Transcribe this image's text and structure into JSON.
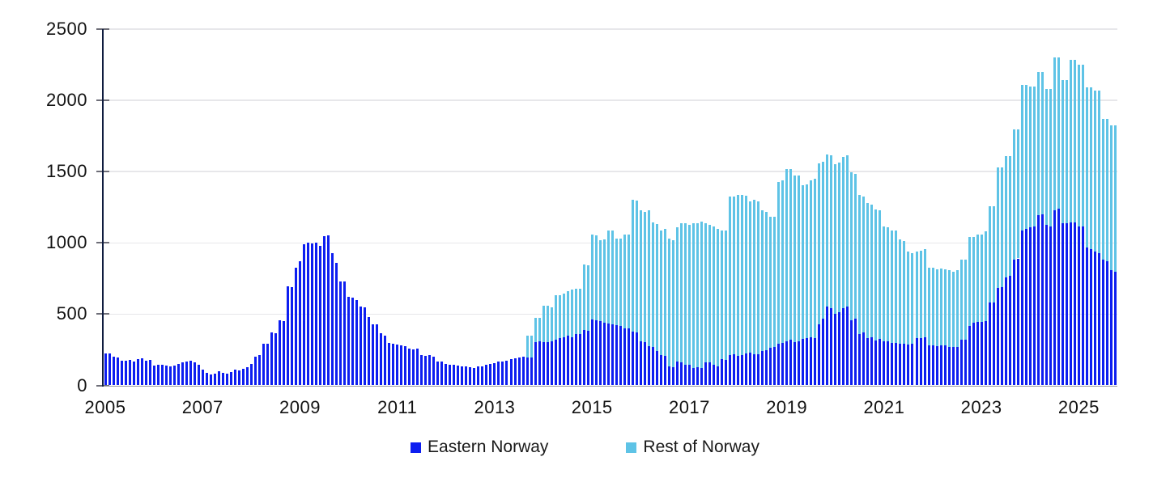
{
  "chart_data": {
    "type": "bar",
    "stacked": true,
    "title": "",
    "xlabel": "",
    "ylabel": "",
    "x_start": "2005-01",
    "x_frequency": "monthly",
    "x_tick_labels": [
      "2005",
      "2007",
      "2009",
      "2011",
      "2013",
      "2015",
      "2017",
      "2019",
      "2021",
      "2023",
      "2025"
    ],
    "x_tick_interval_months": 24,
    "y_ticks": [
      0,
      500,
      1000,
      1500,
      2000,
      2500
    ],
    "ylim": [
      0,
      2500
    ],
    "grid": "horizontal",
    "legend_position": "bottom",
    "series": [
      {
        "name": "Eastern Norway",
        "color": "#0d1ef0",
        "values": [
          225,
          225,
          202,
          198,
          172,
          175,
          179,
          170,
          183,
          189,
          175,
          179,
          138,
          145,
          142,
          138,
          132,
          138,
          151,
          160,
          170,
          175,
          164,
          145,
          110,
          90,
          75,
          80,
          98,
          90,
          85,
          92,
          108,
          105,
          117,
          126,
          150,
          200,
          210,
          295,
          292,
          372,
          368,
          455,
          453,
          695,
          690,
          825,
          870,
          990,
          1004,
          998,
          1000,
          979,
          1047,
          1051,
          930,
          860,
          730,
          728,
          620,
          613,
          598,
          551,
          545,
          480,
          430,
          428,
          365,
          350,
          300,
          292,
          287,
          282,
          277,
          260,
          254,
          258,
          211,
          207,
          215,
          200,
          170,
          166,
          151,
          147,
          143,
          140,
          136,
          132,
          128,
          123,
          132,
          136,
          143,
          151,
          158,
          165,
          170,
          174,
          183,
          190,
          195,
          200,
          198,
          198,
          305,
          310,
          302,
          306,
          311,
          321,
          330,
          340,
          349,
          335,
          358,
          362,
          387,
          381,
          460,
          457,
          453,
          440,
          434,
          430,
          425,
          419,
          400,
          398,
          380,
          370,
          311,
          306,
          274,
          268,
          243,
          211,
          206,
          136,
          130,
          168,
          164,
          145,
          142,
          123,
          126,
          123,
          164,
          160,
          142,
          136,
          183,
          179,
          211,
          217,
          206,
          211,
          225,
          230,
          217,
          221,
          243,
          249,
          262,
          268,
          292,
          300,
          311,
          319,
          306,
          311,
          325,
          334,
          338,
          334,
          428,
          468,
          551,
          541,
          503,
          513,
          541,
          551,
          457,
          467,
          362,
          372,
          330,
          340,
          315,
          325,
          310,
          310,
          300,
          300,
          295,
          290,
          285,
          290,
          330,
          330,
          335,
          280,
          280,
          278,
          280,
          280,
          272,
          270,
          272,
          318,
          322,
          419,
          438,
          443,
          447,
          451,
          579,
          579,
          683,
          692,
          758,
          768,
          881,
          891,
          1089,
          1098,
          1108,
          1117,
          1192,
          1202,
          1126,
          1117,
          1230,
          1240,
          1136,
          1136,
          1145,
          1145,
          1117,
          1117,
          966,
          957,
          938,
          928,
          881,
          872,
          806,
          796
        ]
      },
      {
        "name": "Rest of Norway",
        "color": "#5ec3e6",
        "values": [
          0,
          0,
          0,
          0,
          0,
          0,
          0,
          0,
          0,
          0,
          0,
          0,
          0,
          0,
          0,
          0,
          0,
          0,
          0,
          0,
          0,
          0,
          0,
          0,
          0,
          0,
          0,
          0,
          0,
          0,
          0,
          0,
          0,
          0,
          0,
          0,
          0,
          0,
          0,
          0,
          0,
          0,
          0,
          0,
          0,
          0,
          0,
          0,
          0,
          0,
          0,
          0,
          0,
          0,
          0,
          0,
          0,
          0,
          0,
          0,
          0,
          0,
          0,
          0,
          0,
          0,
          0,
          0,
          0,
          0,
          0,
          0,
          0,
          0,
          0,
          0,
          0,
          0,
          0,
          0,
          0,
          0,
          0,
          0,
          0,
          0,
          0,
          0,
          0,
          0,
          0,
          0,
          0,
          0,
          0,
          0,
          0,
          0,
          0,
          0,
          0,
          0,
          0,
          0,
          151,
          151,
          170,
          166,
          255,
          251,
          236,
          311,
          302,
          302,
          311,
          335,
          321,
          314,
          462,
          464,
          597,
          596,
          566,
          583,
          651,
          659,
          603,
          613,
          657,
          662,
          925,
          925,
          918,
          914,
          955,
          875,
          891,
          876,
          890,
          894,
          891,
          939,
          972,
          995,
          982,
          1017,
          1010,
          1029,
          976,
          964,
          973,
          960,
          904,
          908,
          1113,
          1108,
          1129,
          1124,
          1105,
          1060,
          1083,
          1069,
          987,
          971,
          921,
          915,
          1138,
          1138,
          1209,
          1201,
          1164,
          1159,
          1080,
          1076,
          1102,
          1116,
          1132,
          1102,
          1069,
          1074,
          1052,
          1052,
          1064,
          1064,
          1037,
          1018,
          972,
          953,
          947,
          930,
          921,
          905,
          807,
          800,
          789,
          789,
          728,
          725,
          653,
          640,
          608,
          617,
          620,
          545,
          548,
          537,
          538,
          535,
          534,
          527,
          534,
          563,
          559,
          623,
          604,
          617,
          613,
          629,
          680,
          680,
          849,
          840,
          850,
          840,
          915,
          905,
          1019,
          1010,
          990,
          981,
          1010,
          1000,
          953,
          962,
          1070,
          1060,
          1009,
          1009,
          1138,
          1138,
          1132,
          1132,
          1123,
          1132,
          1132,
          1142,
          991,
          1000,
          1019,
          1029
        ]
      }
    ]
  },
  "legend": {
    "items": [
      {
        "label": "Eastern Norway",
        "color": "#0d1ef0"
      },
      {
        "label": "Rest of Norway",
        "color": "#5ec3e6"
      }
    ]
  },
  "colors": {
    "eastern": "#0d1ef0",
    "rest": "#5ec3e6",
    "gridline": "#e7e7ea",
    "y_axis_line": "#0f1c3f",
    "x_axis_line": "#9b9ba3",
    "tick": "#6e6e78",
    "text": "#121212",
    "background": "#ffffff"
  }
}
